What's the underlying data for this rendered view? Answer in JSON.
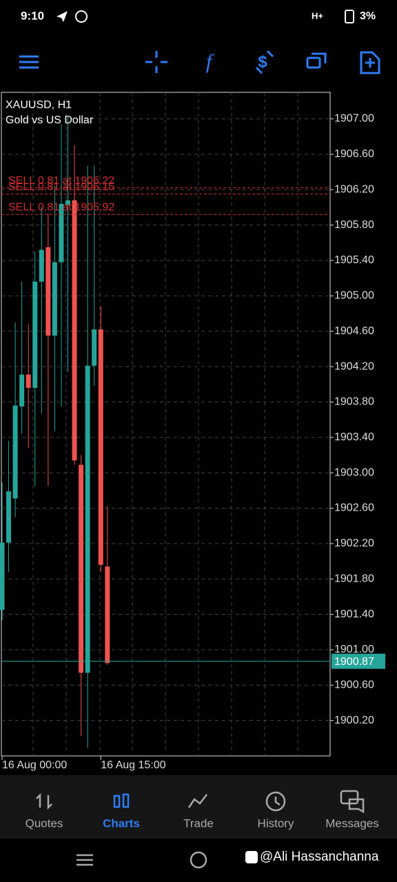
{
  "status_bar": {
    "time": "9:10",
    "network": "H+",
    "battery": "3%"
  },
  "chart_data": {
    "type": "candlestick",
    "title": "XAUUSD, H1",
    "subtitle": "Gold vs US Dollar",
    "categories": [
      "16 Aug 00:00",
      null,
      null,
      null,
      null,
      null,
      null,
      null,
      null,
      null,
      null,
      null,
      null,
      null,
      null,
      "16 Aug 15:00",
      null
    ],
    "up_color": "#26a69a",
    "down_color": "#ef5350",
    "open": [
      1901.45,
      1902.21,
      1902.71,
      1903.75,
      1904.11,
      1903.96,
      1905.16,
      1905.55,
      1904.55,
      1905.38,
      1906.03,
      1906.08,
      1903.09,
      1900.74,
      1904.21,
      1904.62,
      1901.94
    ],
    "high": [
      1902.89,
      1903.36,
      1904.7,
      1905.16,
      1904.68,
      1905.5,
      1906.0,
      1905.93,
      1906.24,
      1906.94,
      1907.03,
      1906.7,
      1903.2,
      1906.47,
      1906.47,
      1904.88,
      1902.62
    ],
    "low": [
      1901.33,
      1901.88,
      1902.5,
      1903.44,
      1903.28,
      1902.85,
      1903.67,
      1902.85,
      1903.47,
      1903.75,
      1904.14,
      1903.09,
      1900.03,
      1899.89,
      1903.98,
      1901.88,
      1900.83
    ],
    "close": [
      1902.21,
      1902.79,
      1903.76,
      1904.11,
      1903.96,
      1905.16,
      1905.52,
      1904.55,
      1905.38,
      1906.04,
      1906.08,
      1903.14,
      1900.74,
      1904.21,
      1904.62,
      1901.96,
      1900.85
    ],
    "ylim": [
      1899.8,
      1907.3
    ],
    "yticks": [
      {
        "value": 1900.2,
        "label": "1900.20"
      },
      {
        "value": 1900.6,
        "label": "1900.60"
      },
      {
        "value": 1901.0,
        "label": "1901.00"
      },
      {
        "value": 1901.4,
        "label": "1901.40"
      },
      {
        "value": 1901.8,
        "label": "1901.80"
      },
      {
        "value": 1902.2,
        "label": "1902.20"
      },
      {
        "value": 1902.6,
        "label": "1902.60"
      },
      {
        "value": 1903.0,
        "label": "1903.00"
      },
      {
        "value": 1903.4,
        "label": "1903.40"
      },
      {
        "value": 1903.8,
        "label": "1903.80"
      },
      {
        "value": 1904.2,
        "label": "1904.20"
      },
      {
        "value": 1904.6,
        "label": "1904.60"
      },
      {
        "value": 1905.0,
        "label": "1905.00"
      },
      {
        "value": 1905.4,
        "label": "1905.40"
      },
      {
        "value": 1905.8,
        "label": "1905.80"
      },
      {
        "value": 1906.2,
        "label": "1906.20"
      },
      {
        "value": 1906.6,
        "label": "1906.60"
      },
      {
        "value": 1907.0,
        "label": "1907.00"
      }
    ],
    "grid": true,
    "orders": [
      {
        "label": "SELL 0.81 at 1906.22",
        "value": 1906.22
      },
      {
        "label": "SELL 0.81 at 1906.15",
        "value": 1906.15
      },
      {
        "label": "SELL 0.81 at 1905.92",
        "value": 1905.92
      }
    ],
    "order_color": "#d32f2f",
    "current_price": 1900.87,
    "current_color": "#26a69a"
  },
  "tabs": [
    "Quotes",
    "Charts",
    "Trade",
    "History",
    "Messages"
  ],
  "watermark": "@Ali Hassanchanna"
}
